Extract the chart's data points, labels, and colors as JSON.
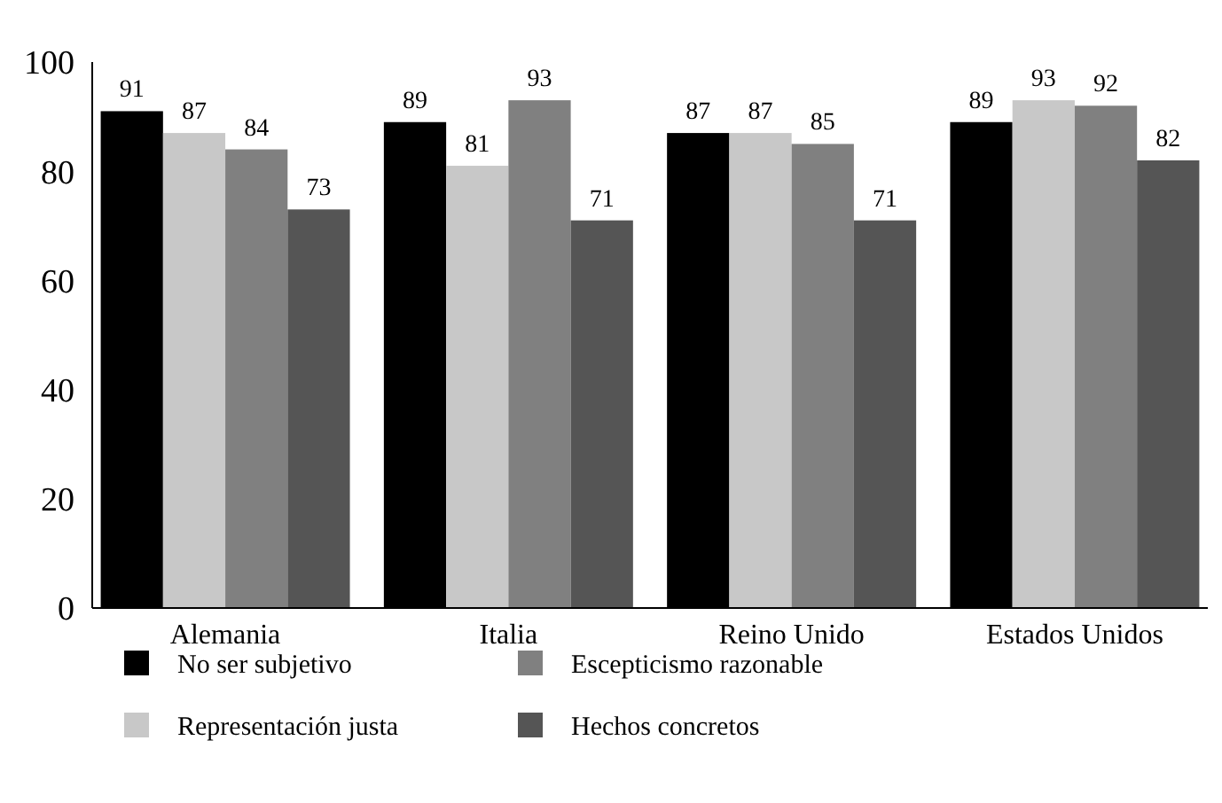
{
  "chart_data": {
    "type": "bar",
    "categories": [
      "Alemania",
      "Italia",
      "Reino Unido",
      "Estados Unidos"
    ],
    "series": [
      {
        "name": "No ser subjetivo",
        "color": "#000000",
        "values": [
          91,
          89,
          87,
          89
        ]
      },
      {
        "name": "Representación justa",
        "color": "#c8c8c8",
        "values": [
          87,
          81,
          87,
          93
        ]
      },
      {
        "name": "Escepticismo razonable",
        "color": "#808080",
        "values": [
          84,
          93,
          85,
          92
        ]
      },
      {
        "name": "Hechos concretos",
        "color": "#555555",
        "values": [
          73,
          71,
          71,
          82
        ]
      }
    ],
    "ylim": [
      0,
      100
    ],
    "yticks": [
      0,
      20,
      40,
      60,
      80,
      100
    ],
    "data_labels": true,
    "legend": "bottom",
    "grid": false
  }
}
